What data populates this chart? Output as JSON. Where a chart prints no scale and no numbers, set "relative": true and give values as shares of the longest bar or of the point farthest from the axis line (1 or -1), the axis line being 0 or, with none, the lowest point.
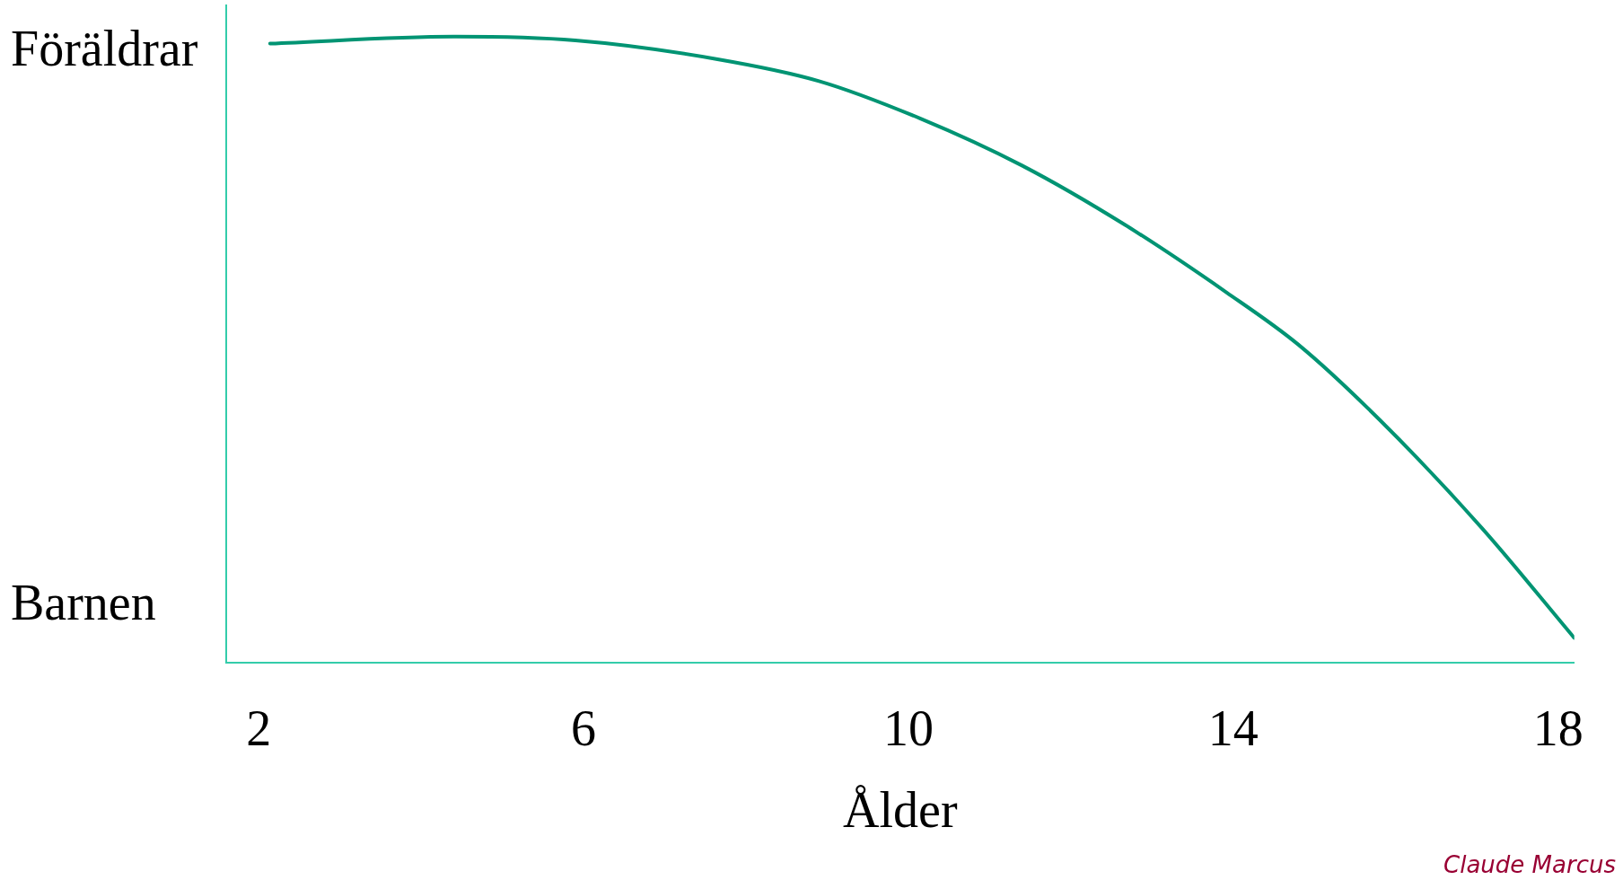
{
  "chart_data": {
    "type": "line",
    "xlabel": "Ålder",
    "relative": true,
    "x": [
      2.14,
      4.4,
      5.9,
      7.65,
      8.9,
      10.15,
      11.4,
      12.67,
      13.92,
      14.8,
      15.8,
      17.06,
      18.2
    ],
    "series": [
      {
        "color": "#009473",
        "values": [
          0.989,
          1,
          0.994,
          0.964,
          0.929,
          0.869,
          0.794,
          0.699,
          0.591,
          0.508,
          0.388,
          0.215,
          0.039
        ]
      }
    ],
    "xlim": [
      1.6,
      18.2
    ],
    "xticks": [
      2,
      6,
      10,
      14,
      18
    ],
    "grid": false,
    "legend": false,
    "marker": "none",
    "line_style": "solid",
    "annotations": [
      "Föräldrar",
      "Barnen",
      "Claude Marcus"
    ]
  }
}
